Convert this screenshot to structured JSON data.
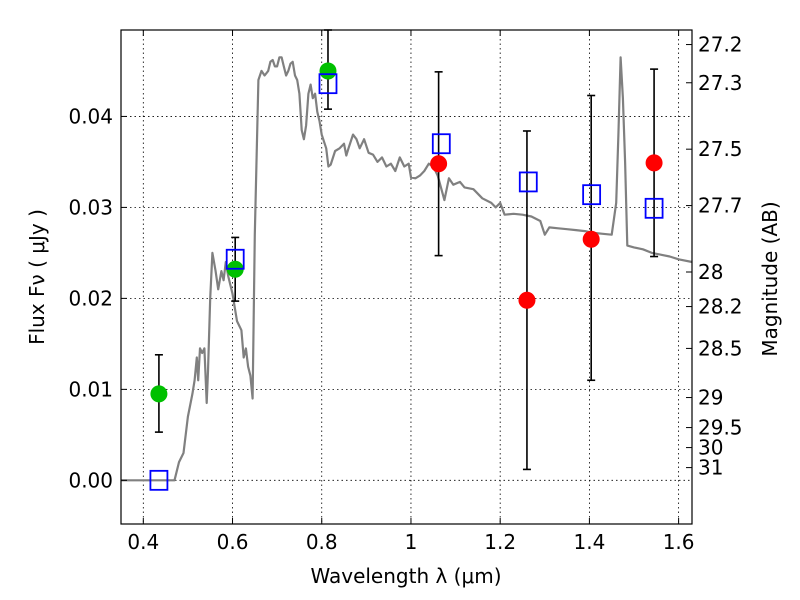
{
  "chart_data": {
    "type": "scatter",
    "xlabel": "Wavelength  λ (μm)",
    "ylabel": "Flux  Fν  ( μJy )",
    "y2label": "Magnitude (AB)",
    "xlim": [
      0.35,
      1.63
    ],
    "ylim": [
      -0.0048,
      0.0495
    ],
    "xticks": [
      0.4,
      0.6,
      0.8,
      1.0,
      1.2,
      1.4,
      1.6
    ],
    "xtick_labels": [
      "0.4",
      "0.6",
      "0.8",
      "1",
      "1.2",
      "1.4",
      "1.6"
    ],
    "yticks": [
      0.0,
      0.01,
      0.02,
      0.03,
      0.04
    ],
    "ytick_labels": [
      "0.00",
      "0.01",
      "0.02",
      "0.03",
      "0.04"
    ],
    "y2ticks": [
      {
        "label": "27.2",
        "flux": 0.0479
      },
      {
        "label": "27.3",
        "flux": 0.0437
      },
      {
        "label": "27.5",
        "flux": 0.0364
      },
      {
        "label": "27.7",
        "flux": 0.0302
      },
      {
        "label": "28",
        "flux": 0.0229
      },
      {
        "label": "28.2",
        "flux": 0.0191
      },
      {
        "label": "28.5",
        "flux": 0.0145
      },
      {
        "label": "29",
        "flux": 0.0091
      },
      {
        "label": "29.5",
        "flux": 0.0058
      },
      {
        "label": "30",
        "flux": 0.0036
      },
      {
        "label": "31",
        "flux": 0.0014
      }
    ],
    "grid": true,
    "colors": {
      "model": "#808080",
      "green": "#00c000",
      "red": "#ff0000",
      "square": "#0000ff",
      "errorbar": "#000000"
    },
    "series": [
      {
        "marker": "line",
        "points": [
          [
            0.35,
            0.0
          ],
          [
            0.47,
            0.0
          ],
          [
            0.48,
            0.002
          ],
          [
            0.49,
            0.003
          ],
          [
            0.5,
            0.007
          ],
          [
            0.51,
            0.0095
          ],
          [
            0.515,
            0.011
          ],
          [
            0.52,
            0.0135
          ],
          [
            0.523,
            0.011
          ],
          [
            0.527,
            0.0145
          ],
          [
            0.532,
            0.014
          ],
          [
            0.537,
            0.0145
          ],
          [
            0.542,
            0.0085
          ],
          [
            0.545,
            0.012
          ],
          [
            0.55,
            0.02
          ],
          [
            0.555,
            0.025
          ],
          [
            0.562,
            0.023
          ],
          [
            0.568,
            0.021
          ],
          [
            0.575,
            0.023
          ],
          [
            0.58,
            0.022
          ],
          [
            0.585,
            0.024
          ],
          [
            0.59,
            0.0225
          ],
          [
            0.595,
            0.0215
          ],
          [
            0.6,
            0.0205
          ],
          [
            0.61,
            0.0175
          ],
          [
            0.62,
            0.0165
          ],
          [
            0.625,
            0.0135
          ],
          [
            0.63,
            0.0145
          ],
          [
            0.635,
            0.0125
          ],
          [
            0.64,
            0.0115
          ],
          [
            0.645,
            0.009
          ],
          [
            0.65,
            0.027
          ],
          [
            0.658,
            0.044
          ],
          [
            0.665,
            0.045
          ],
          [
            0.672,
            0.0445
          ],
          [
            0.68,
            0.045
          ],
          [
            0.685,
            0.046
          ],
          [
            0.69,
            0.0462
          ],
          [
            0.695,
            0.0455
          ],
          [
            0.7,
            0.0455
          ],
          [
            0.705,
            0.0465
          ],
          [
            0.71,
            0.0465
          ],
          [
            0.715,
            0.0455
          ],
          [
            0.72,
            0.0445
          ],
          [
            0.725,
            0.045
          ],
          [
            0.73,
            0.0458
          ],
          [
            0.735,
            0.046
          ],
          [
            0.74,
            0.0445
          ],
          [
            0.745,
            0.044
          ],
          [
            0.75,
            0.0425
          ],
          [
            0.755,
            0.0385
          ],
          [
            0.76,
            0.0375
          ],
          [
            0.765,
            0.039
          ],
          [
            0.77,
            0.0425
          ],
          [
            0.775,
            0.0435
          ],
          [
            0.78,
            0.042
          ],
          [
            0.785,
            0.0425
          ],
          [
            0.79,
            0.0405
          ],
          [
            0.795,
            0.0395
          ],
          [
            0.8,
            0.038
          ],
          [
            0.81,
            0.0365
          ],
          [
            0.815,
            0.0345
          ],
          [
            0.82,
            0.0347
          ],
          [
            0.83,
            0.0362
          ],
          [
            0.84,
            0.0365
          ],
          [
            0.85,
            0.037
          ],
          [
            0.855,
            0.0357
          ],
          [
            0.86,
            0.0365
          ],
          [
            0.87,
            0.038
          ],
          [
            0.878,
            0.0375
          ],
          [
            0.885,
            0.0365
          ],
          [
            0.895,
            0.0375
          ],
          [
            0.905,
            0.036
          ],
          [
            0.915,
            0.0358
          ],
          [
            0.925,
            0.035
          ],
          [
            0.935,
            0.0355
          ],
          [
            0.945,
            0.0345
          ],
          [
            0.955,
            0.0348
          ],
          [
            0.965,
            0.034
          ],
          [
            0.975,
            0.0355
          ],
          [
            0.985,
            0.0345
          ],
          [
            0.995,
            0.0348
          ],
          [
            1.0,
            0.0333
          ],
          [
            1.01,
            0.0332
          ],
          [
            1.02,
            0.0335
          ],
          [
            1.03,
            0.034
          ],
          [
            1.04,
            0.0348
          ],
          [
            1.05,
            0.0345
          ],
          [
            1.06,
            0.0335
          ],
          [
            1.075,
            0.0308
          ],
          [
            1.085,
            0.0332
          ],
          [
            1.095,
            0.0325
          ],
          [
            1.11,
            0.0328
          ],
          [
            1.12,
            0.0322
          ],
          [
            1.14,
            0.032
          ],
          [
            1.16,
            0.031
          ],
          [
            1.18,
            0.0305
          ],
          [
            1.19,
            0.03
          ],
          [
            1.2,
            0.0305
          ],
          [
            1.21,
            0.0292
          ],
          [
            1.23,
            0.0293
          ],
          [
            1.25,
            0.0292
          ],
          [
            1.27,
            0.029
          ],
          [
            1.29,
            0.0285
          ],
          [
            1.3,
            0.027
          ],
          [
            1.31,
            0.0278
          ],
          [
            1.33,
            0.0277
          ],
          [
            1.35,
            0.0276
          ],
          [
            1.37,
            0.0275
          ],
          [
            1.39,
            0.0274
          ],
          [
            1.41,
            0.0272
          ],
          [
            1.43,
            0.0271
          ],
          [
            1.45,
            0.027
          ],
          [
            1.46,
            0.0305
          ],
          [
            1.465,
            0.038
          ],
          [
            1.47,
            0.0465
          ],
          [
            1.475,
            0.042
          ],
          [
            1.48,
            0.035
          ],
          [
            1.485,
            0.0258
          ],
          [
            1.5,
            0.0256
          ],
          [
            1.52,
            0.0254
          ],
          [
            1.54,
            0.025
          ],
          [
            1.56,
            0.0248
          ],
          [
            1.58,
            0.0246
          ],
          [
            1.6,
            0.0243
          ],
          [
            1.63,
            0.024
          ]
        ]
      },
      {
        "marker": "green-circle",
        "points": [
          {
            "x": 0.435,
            "y": 0.0095,
            "err_low": 0.0053,
            "err_high": 0.0138
          },
          {
            "x": 0.606,
            "y": 0.0232,
            "err_low": 0.0197,
            "err_high": 0.0267
          },
          {
            "x": 0.814,
            "y": 0.045,
            "err_low": 0.0408,
            "err_high": 0.0495
          }
        ]
      },
      {
        "marker": "red-circle",
        "points": [
          {
            "x": 1.062,
            "y": 0.0348,
            "err_low": 0.0247,
            "err_high": 0.0449
          },
          {
            "x": 1.26,
            "y": 0.0198,
            "err_low": 0.0012,
            "err_high": 0.0384
          },
          {
            "x": 1.404,
            "y": 0.0265,
            "err_low": 0.011,
            "err_high": 0.0423
          },
          {
            "x": 1.545,
            "y": 0.0349,
            "err_low": 0.0246,
            "err_high": 0.0452
          }
        ]
      },
      {
        "marker": "blue-square",
        "points": [
          {
            "x": 0.435,
            "y": 0.0
          },
          {
            "x": 0.606,
            "y": 0.0243
          },
          {
            "x": 0.814,
            "y": 0.0436
          },
          {
            "x": 1.068,
            "y": 0.037
          },
          {
            "x": 1.263,
            "y": 0.0328
          },
          {
            "x": 1.405,
            "y": 0.0314
          },
          {
            "x": 1.545,
            "y": 0.0299
          }
        ]
      }
    ]
  }
}
